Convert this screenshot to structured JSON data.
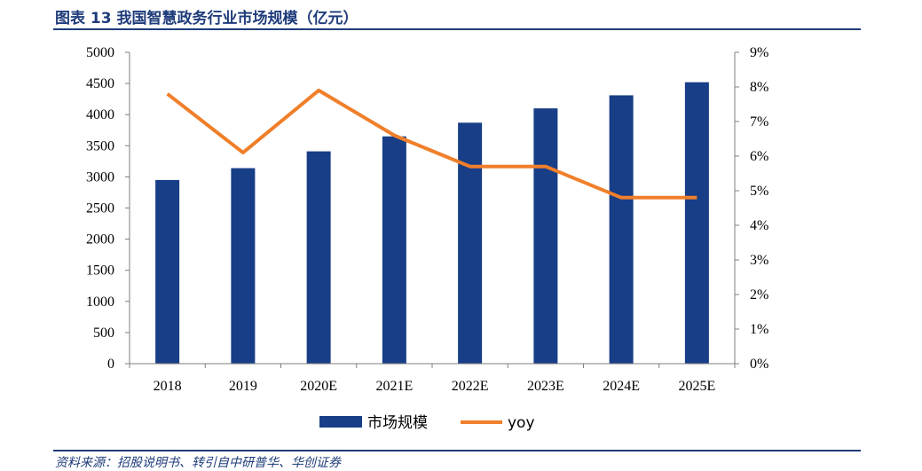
{
  "title": "图表 13 我国智慧政务行业市场规模（亿元）",
  "source": "资料来源：招股说明书、转引自中研普华、华创证券",
  "colors": {
    "bar": "#173e87",
    "line": "#f07f2a",
    "title": "#1f3c7a",
    "axis": "#7f7f7f"
  },
  "chart_data": {
    "type": "bar",
    "categories": [
      "2018",
      "2019",
      "2020E",
      "2021E",
      "2022E",
      "2023E",
      "2024E",
      "2025E"
    ],
    "series": [
      {
        "name": "市场规模",
        "type": "bar",
        "axis": "left",
        "values": [
          2950,
          3140,
          3410,
          3650,
          3870,
          4100,
          4310,
          4520
        ]
      },
      {
        "name": "yoy",
        "type": "line",
        "axis": "right",
        "values": [
          0.078,
          0.061,
          0.079,
          0.066,
          0.057,
          0.057,
          0.048,
          0.048
        ]
      }
    ],
    "ylim_left": [
      0,
      5000
    ],
    "yticks_left": [
      "0",
      "500",
      "1000",
      "1500",
      "2000",
      "2500",
      "3000",
      "3500",
      "4000",
      "4500",
      "5000"
    ],
    "ylim_right": [
      0,
      0.09
    ],
    "yticks_right": [
      "0%",
      "1%",
      "2%",
      "3%",
      "4%",
      "5%",
      "6%",
      "7%",
      "8%",
      "9%"
    ],
    "legend_position": "bottom-center",
    "grid": false
  }
}
